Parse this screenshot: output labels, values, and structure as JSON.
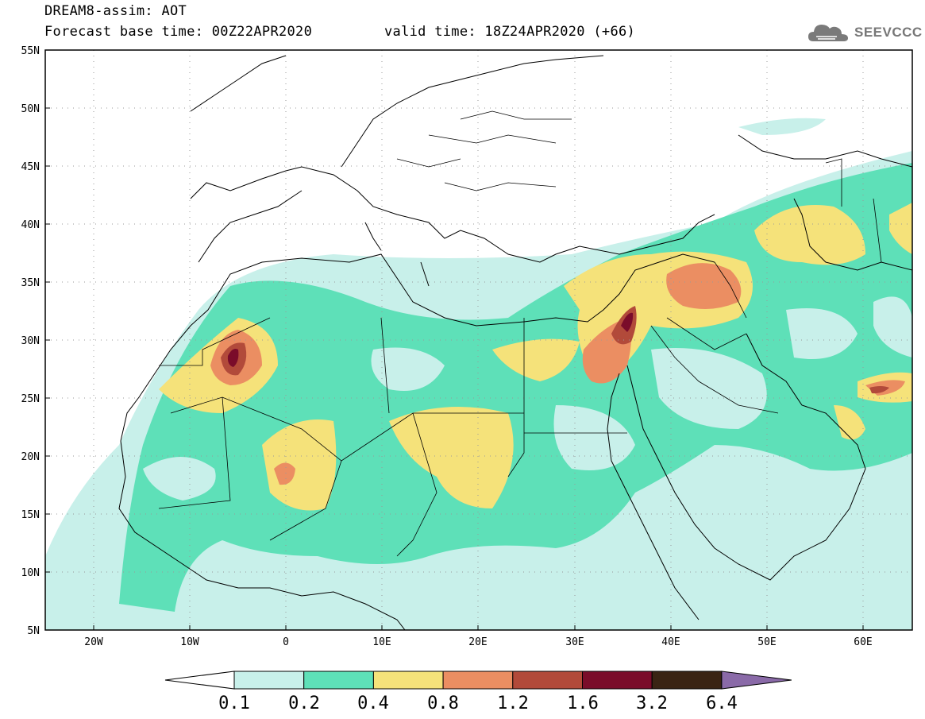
{
  "header": {
    "title": "DREAM8-assim: AOT",
    "base_time": "Forecast base time: 00Z22APR2020",
    "valid_time": "valid time: 18Z24APR2020 (+66)",
    "logo_text": "SEEVCCC"
  },
  "map": {
    "lat_range": [
      5,
      55
    ],
    "lon_range": [
      -25,
      65
    ],
    "lat_labels": [
      "55N",
      "50N",
      "45N",
      "40N",
      "35N",
      "30N",
      "25N",
      "20N",
      "15N",
      "10N",
      "5N"
    ],
    "lon_labels": [
      "20W",
      "10W",
      "0",
      "10E",
      "20E",
      "30E",
      "40E",
      "50E",
      "60E"
    ],
    "grid": "dotted"
  },
  "colorbar": {
    "levels": [
      "0.1",
      "0.2",
      "0.4",
      "0.8",
      "1.2",
      "1.6",
      "3.2",
      "6.4"
    ],
    "colors": [
      "#ffffff",
      "#c8f0ea",
      "#5ee0b8",
      "#f5e27a",
      "#eb8e62",
      "#b24a3a",
      "#7a0c2a",
      "#3a2414",
      "#8a6aa8"
    ]
  }
}
